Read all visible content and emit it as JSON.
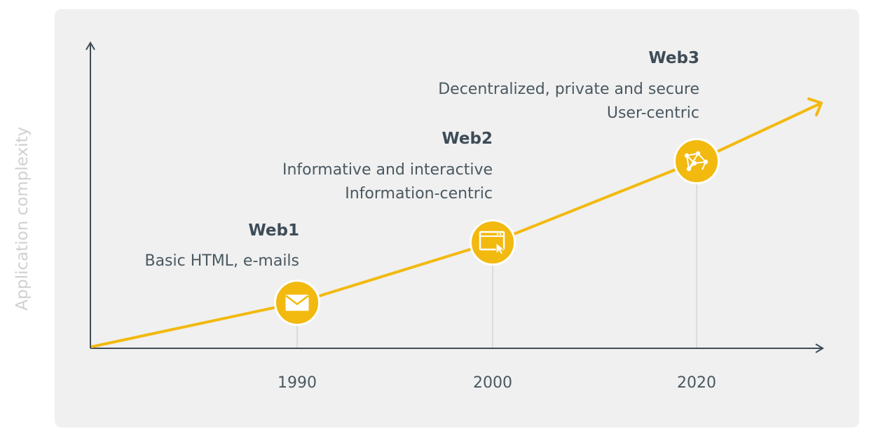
{
  "y_axis_label": "Application complexity",
  "colors": {
    "accent": "#f2b90f",
    "axis": "#3e4c57",
    "panel": "#f0f0f0"
  },
  "x_ticks": [
    "1990",
    "2000",
    "2020"
  ],
  "milestones": [
    {
      "heading": "Web1",
      "lines": [
        "Basic HTML, e-mails"
      ],
      "icon": "envelope-icon"
    },
    {
      "heading": "Web2",
      "lines": [
        "Informative and interactive",
        "Information-centric"
      ],
      "icon": "browser-cursor-icon"
    },
    {
      "heading": "Web3",
      "lines": [
        "Decentralized, private and secure",
        "User-centric"
      ],
      "icon": "network-nodes-icon"
    }
  ]
}
